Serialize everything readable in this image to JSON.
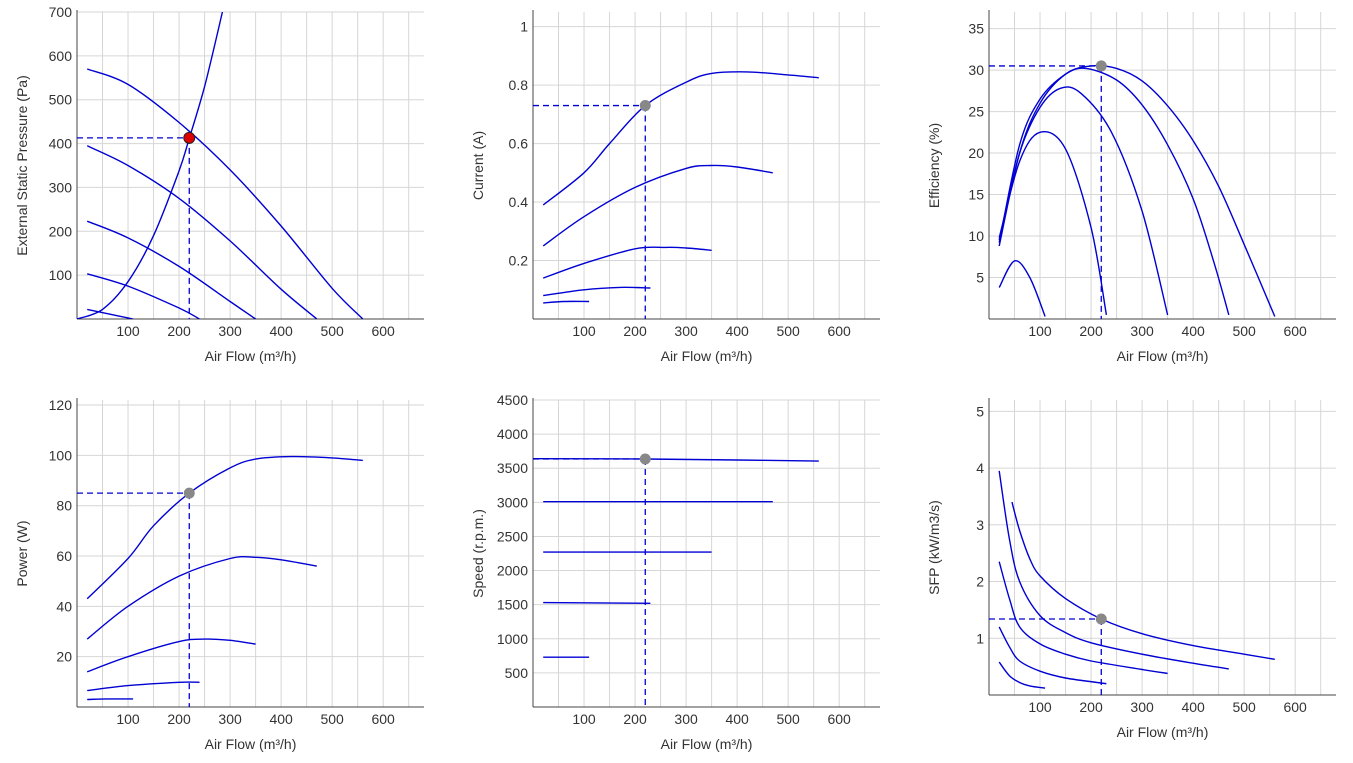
{
  "chart_data": [
    {
      "id": "pressure",
      "type": "line",
      "xlabel": "Air Flow (m³/h)",
      "ylabel": "External Static Pressure (Pa)",
      "xlim": [
        0,
        680
      ],
      "ylim": [
        0,
        700
      ],
      "xticks": [
        100,
        200,
        300,
        400,
        500,
        600
      ],
      "yticks": [
        100,
        200,
        300,
        400,
        500,
        600,
        700
      ],
      "series": [
        {
          "x": [
            20,
            100,
            200,
            300,
            400,
            500,
            560
          ],
          "y": [
            570,
            535,
            448,
            340,
            212,
            70,
            0
          ]
        },
        {
          "x": [
            20,
            100,
            200,
            300,
            400,
            470
          ],
          "y": [
            395,
            350,
            275,
            178,
            68,
            0
          ]
        },
        {
          "x": [
            20,
            100,
            200,
            300,
            350
          ],
          "y": [
            223,
            185,
            120,
            40,
            0
          ]
        },
        {
          "x": [
            20,
            100,
            200,
            240
          ],
          "y": [
            103,
            75,
            25,
            0
          ]
        },
        {
          "x": [
            20,
            60,
            110
          ],
          "y": [
            22,
            12,
            0
          ]
        },
        {
          "x": [
            0,
            50,
            100,
            150,
            200,
            220,
            250,
            285
          ],
          "y": [
            0,
            22,
            85,
            190,
            338,
            412,
            530,
            700
          ]
        }
      ],
      "point": {
        "x": 220,
        "y": 413,
        "color": "#dd0000"
      }
    },
    {
      "id": "current",
      "type": "line",
      "xlabel": "Air Flow (m³/h)",
      "ylabel": "Current (A)",
      "xlim": [
        0,
        680
      ],
      "ylim": [
        0,
        1.05
      ],
      "xticks": [
        100,
        200,
        300,
        400,
        500,
        600
      ],
      "yticks": [
        0.2,
        0.4,
        0.6,
        0.8,
        1
      ],
      "series": [
        {
          "x": [
            20,
            100,
            150,
            220,
            300,
            350,
            420,
            500,
            560
          ],
          "y": [
            0.39,
            0.5,
            0.6,
            0.73,
            0.81,
            0.84,
            0.845,
            0.835,
            0.825
          ]
        },
        {
          "x": [
            20,
            100,
            200,
            300,
            350,
            400,
            470
          ],
          "y": [
            0.25,
            0.35,
            0.45,
            0.515,
            0.525,
            0.52,
            0.5
          ]
        },
        {
          "x": [
            20,
            100,
            200,
            260,
            300,
            350
          ],
          "y": [
            0.14,
            0.19,
            0.24,
            0.245,
            0.243,
            0.235
          ]
        },
        {
          "x": [
            20,
            100,
            170,
            230
          ],
          "y": [
            0.08,
            0.1,
            0.108,
            0.106
          ]
        },
        {
          "x": [
            20,
            60,
            110
          ],
          "y": [
            0.055,
            0.06,
            0.06
          ]
        }
      ],
      "point": {
        "x": 220,
        "y": 0.73,
        "color": "#888888"
      }
    },
    {
      "id": "efficiency",
      "type": "line",
      "xlabel": "Air Flow (m³/h)",
      "ylabel": "Efficiency (%)",
      "xlim": [
        0,
        680
      ],
      "ylim": [
        0,
        37
      ],
      "xticks": [
        100,
        200,
        300,
        400,
        500,
        600
      ],
      "yticks": [
        5,
        10,
        15,
        20,
        25,
        30,
        35
      ],
      "series": [
        {
          "x": [
            20,
            60,
            100,
            150,
            200,
            250,
            300,
            350,
            400,
            450,
            500,
            560
          ],
          "y": [
            8.8,
            20,
            26,
            29.5,
            30.5,
            30.2,
            28.7,
            25.7,
            21.5,
            16,
            9,
            0.3
          ]
        },
        {
          "x": [
            20,
            60,
            100,
            150,
            190,
            250,
            300,
            350,
            400,
            440,
            470
          ],
          "y": [
            9.2,
            21,
            26.5,
            29.5,
            30.2,
            28.8,
            25.8,
            21,
            14.5,
            7,
            0.5
          ]
        },
        {
          "x": [
            20,
            60,
            100,
            140,
            180,
            240,
            300,
            350
          ],
          "y": [
            9.5,
            20,
            25.5,
            27.8,
            27.2,
            22.5,
            13,
            0.5
          ]
        },
        {
          "x": [
            20,
            60,
            100,
            150,
            200,
            230
          ],
          "y": [
            9.8,
            19,
            22.5,
            20.5,
            11,
            0.5
          ]
        },
        {
          "x": [
            20,
            50,
            80,
            110
          ],
          "y": [
            3.8,
            7,
            5,
            0.3
          ]
        }
      ],
      "point": {
        "x": 220,
        "y": 30.5,
        "color": "#888888"
      }
    },
    {
      "id": "power",
      "type": "line",
      "xlabel": "Air Flow (m³/h)",
      "ylabel": "Power (W)",
      "xlim": [
        0,
        680
      ],
      "ylim": [
        0,
        122
      ],
      "xticks": [
        100,
        200,
        300,
        400,
        500,
        600
      ],
      "yticks": [
        20,
        40,
        60,
        80,
        100,
        120
      ],
      "series": [
        {
          "x": [
            20,
            100,
            150,
            220,
            300,
            350,
            420,
            500,
            560
          ],
          "y": [
            43,
            59,
            72,
            85,
            95,
            98.5,
            99.5,
            99,
            98
          ]
        },
        {
          "x": [
            20,
            100,
            200,
            300,
            350,
            400,
            470
          ],
          "y": [
            27,
            40,
            52,
            59,
            59.5,
            58.5,
            56
          ]
        },
        {
          "x": [
            20,
            100,
            200,
            250,
            300,
            350
          ],
          "y": [
            14,
            20,
            26,
            27,
            26.5,
            25
          ]
        },
        {
          "x": [
            20,
            100,
            200,
            240
          ],
          "y": [
            6.5,
            8.5,
            9.8,
            9.8
          ]
        },
        {
          "x": [
            20,
            60,
            110
          ],
          "y": [
            3,
            3.2,
            3.2
          ]
        }
      ],
      "point": {
        "x": 220,
        "y": 85,
        "color": "#888888"
      }
    },
    {
      "id": "speed",
      "type": "line",
      "xlabel": "Air Flow (m³/h)",
      "ylabel": "Speed (r.p.m.)",
      "xlim": [
        0,
        680
      ],
      "ylim": [
        0,
        4500
      ],
      "xticks": [
        100,
        200,
        300,
        400,
        500,
        600
      ],
      "yticks": [
        500,
        1000,
        1500,
        2000,
        2500,
        3000,
        3500,
        4000,
        4500
      ],
      "series": [
        {
          "x": [
            0,
            220,
            400,
            560
          ],
          "y": [
            3640,
            3635,
            3620,
            3605
          ]
        },
        {
          "x": [
            20,
            470
          ],
          "y": [
            3010,
            3010
          ]
        },
        {
          "x": [
            20,
            350
          ],
          "y": [
            2270,
            2270
          ]
        },
        {
          "x": [
            20,
            230
          ],
          "y": [
            1530,
            1520
          ]
        },
        {
          "x": [
            20,
            110
          ],
          "y": [
            730,
            730
          ]
        }
      ],
      "point": {
        "x": 220,
        "y": 3635,
        "color": "#888888"
      }
    },
    {
      "id": "sfp",
      "type": "line",
      "xlabel": "Air Flow (m³/h)",
      "ylabel": "SFP (kW/m3/s)",
      "xlim": [
        0,
        680
      ],
      "ylim": [
        0,
        5.2
      ],
      "xticks": [
        100,
        200,
        300,
        400,
        500,
        600
      ],
      "yticks": [
        1,
        2,
        3,
        4,
        5
      ],
      "series": [
        {
          "x": [
            45,
            60,
            80,
            100,
            150,
            220,
            300,
            400,
            500,
            560
          ],
          "y": [
            3.4,
            2.9,
            2.4,
            2.1,
            1.7,
            1.34,
            1.08,
            0.87,
            0.72,
            0.63
          ]
        },
        {
          "x": [
            20,
            40,
            60,
            100,
            150,
            200,
            300,
            400,
            470
          ],
          "y": [
            3.95,
            2.75,
            2.0,
            1.4,
            1.1,
            0.92,
            0.72,
            0.56,
            0.46
          ]
        },
        {
          "x": [
            20,
            40,
            60,
            100,
            150,
            200,
            300,
            350
          ],
          "y": [
            2.35,
            1.7,
            1.2,
            0.9,
            0.72,
            0.6,
            0.45,
            0.38
          ]
        },
        {
          "x": [
            20,
            40,
            60,
            100,
            150,
            230
          ],
          "y": [
            1.2,
            0.85,
            0.6,
            0.42,
            0.3,
            0.2
          ]
        },
        {
          "x": [
            20,
            40,
            60,
            80,
            110
          ],
          "y": [
            0.58,
            0.34,
            0.22,
            0.16,
            0.12
          ]
        }
      ],
      "point": {
        "x": 220,
        "y": 1.34,
        "color": "#888888"
      }
    }
  ]
}
